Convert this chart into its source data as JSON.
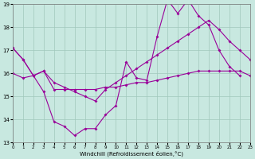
{
  "xlabel": "Windchill (Refroidissement éolien,°C)",
  "xlim": [
    0,
    23
  ],
  "ylim": [
    13,
    19
  ],
  "yticks": [
    13,
    14,
    15,
    16,
    17,
    18,
    19
  ],
  "xticks": [
    0,
    1,
    2,
    3,
    4,
    5,
    6,
    7,
    8,
    9,
    10,
    11,
    12,
    13,
    14,
    15,
    16,
    17,
    18,
    19,
    20,
    21,
    22,
    23
  ],
  "bg_color": "#c8e8e0",
  "grid_color": "#a0c8bc",
  "line_color": "#990099",
  "line1_x": [
    0,
    1,
    2,
    3,
    4,
    5,
    6,
    7,
    8,
    9,
    10,
    11,
    12,
    13,
    14,
    15,
    16,
    17,
    18,
    19,
    20,
    21,
    22
  ],
  "line1_y": [
    17.1,
    16.6,
    15.9,
    15.2,
    13.9,
    13.7,
    13.3,
    13.6,
    13.6,
    14.2,
    14.6,
    16.5,
    15.8,
    15.7,
    17.6,
    19.2,
    18.6,
    19.2,
    18.5,
    18.1,
    17.0,
    16.3,
    15.9
  ],
  "line2_x": [
    0,
    1,
    2,
    3,
    4,
    5,
    6,
    7,
    8,
    9,
    10,
    11,
    12,
    13,
    14,
    15,
    16,
    17,
    18,
    19,
    20,
    21,
    22,
    23
  ],
  "line2_y": [
    17.1,
    16.6,
    15.9,
    16.1,
    15.3,
    15.3,
    15.3,
    15.3,
    15.3,
    15.4,
    15.4,
    15.5,
    15.6,
    15.6,
    15.7,
    15.8,
    15.9,
    16.0,
    16.1,
    16.1,
    16.1,
    16.1,
    16.1,
    15.9
  ],
  "line3_x": [
    0,
    1,
    2,
    3,
    4,
    5,
    6,
    7,
    8,
    9,
    10,
    11,
    12,
    13,
    14,
    15,
    16,
    17,
    18,
    19,
    20,
    21,
    22,
    23
  ],
  "line3_y": [
    16.0,
    15.8,
    15.9,
    16.1,
    15.6,
    15.4,
    15.2,
    15.0,
    14.8,
    15.3,
    15.6,
    15.9,
    16.2,
    16.5,
    16.8,
    17.1,
    17.4,
    17.7,
    18.0,
    18.3,
    17.9,
    17.4,
    17.0,
    16.6
  ]
}
